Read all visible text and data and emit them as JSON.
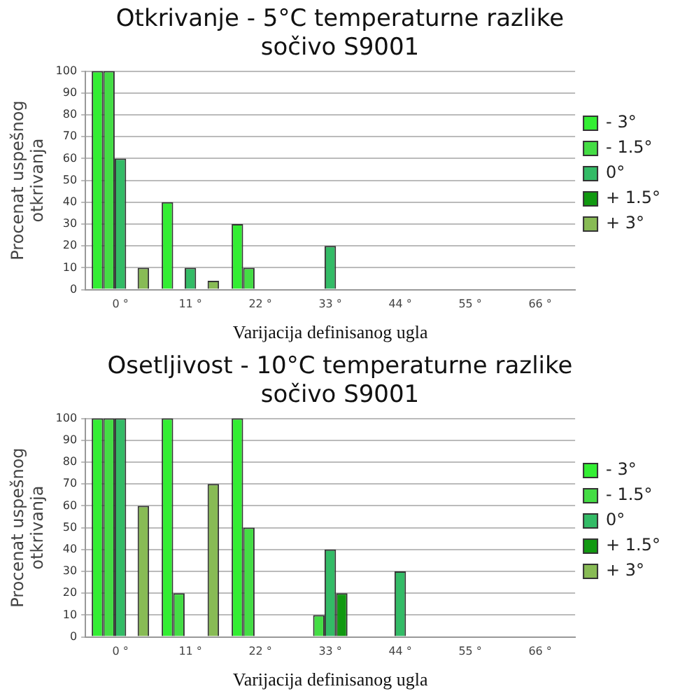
{
  "chart_data": [
    {
      "type": "bar",
      "title": "Otkrivanje - 5°C temperaturne razlike\nsočivo S9001",
      "xlabel": "Varijacija definisanog ugla",
      "ylabel": "Procenat uspešnog\notkrivanja",
      "categories": [
        "0 °",
        "11 °",
        "22 °",
        "33 °",
        "44 °",
        "55 °",
        "66 °"
      ],
      "ylim": [
        0,
        100
      ],
      "yticks": [
        0,
        10,
        20,
        30,
        40,
        50,
        60,
        70,
        80,
        90,
        100
      ],
      "grid": "y",
      "legend": "right",
      "series": [
        {
          "name": "- 3°",
          "color": "#33ee33",
          "values": [
            100,
            40,
            30,
            null,
            null,
            null,
            null
          ]
        },
        {
          "name": "- 1.5°",
          "color": "#44dd44",
          "values": [
            100,
            null,
            10,
            null,
            null,
            null,
            null
          ]
        },
        {
          "name": "0°",
          "color": "#33bb66",
          "values": [
            60,
            10,
            null,
            20,
            null,
            null,
            null
          ]
        },
        {
          "name": "+ 1.5°",
          "color": "#119911",
          "values": [
            null,
            null,
            null,
            null,
            null,
            null,
            null
          ]
        },
        {
          "name": "+ 3°",
          "color": "#88bb55",
          "values": [
            10,
            4,
            null,
            null,
            null,
            null,
            null
          ]
        }
      ]
    },
    {
      "type": "bar",
      "title": "Osetljivost - 10°C temperaturne razlike\nsočivo S9001",
      "xlabel": "Varijacija definisanog ugla",
      "ylabel": "Procenat uspešnog\notkrivanja",
      "categories": [
        "0 °",
        "11 °",
        "22 °",
        "33 °",
        "44 °",
        "55 °",
        "66 °"
      ],
      "ylim": [
        0,
        100
      ],
      "yticks": [
        0,
        10,
        20,
        30,
        40,
        50,
        60,
        70,
        80,
        90,
        100
      ],
      "grid": "y",
      "legend": "right",
      "series": [
        {
          "name": "- 3°",
          "color": "#33ee33",
          "values": [
            100,
            100,
            100,
            null,
            null,
            null,
            null
          ]
        },
        {
          "name": "- 1.5°",
          "color": "#44dd44",
          "values": [
            100,
            20,
            50,
            10,
            null,
            null,
            null
          ]
        },
        {
          "name": "0°",
          "color": "#33bb66",
          "values": [
            100,
            null,
            null,
            40,
            30,
            null,
            null
          ]
        },
        {
          "name": "+ 1.5°",
          "color": "#119911",
          "values": [
            null,
            null,
            null,
            20,
            null,
            null,
            null
          ]
        },
        {
          "name": "+ 3°",
          "color": "#88bb55",
          "values": [
            60,
            70,
            null,
            null,
            null,
            null,
            null
          ]
        }
      ]
    }
  ]
}
